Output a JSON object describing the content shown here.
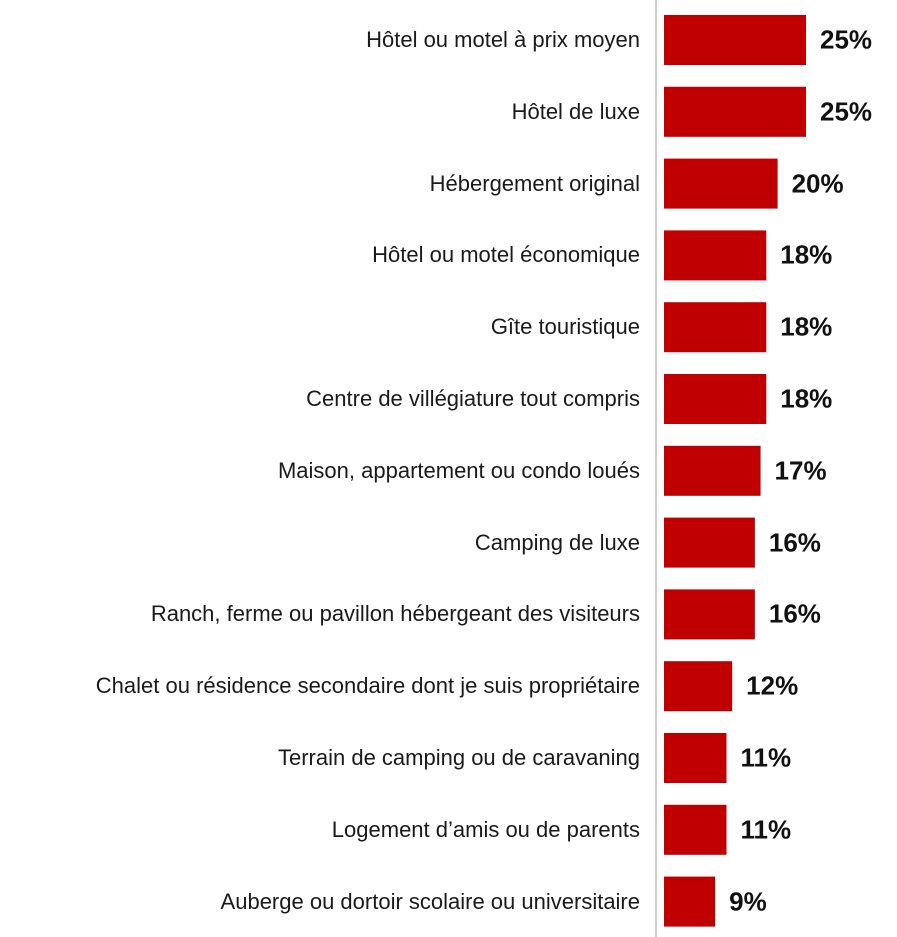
{
  "chart_data": {
    "type": "barh",
    "categories": [
      "Hôtel ou motel à prix moyen",
      "Hôtel de luxe",
      "Hébergement original",
      "Hôtel ou motel économique",
      "Gîte touristique",
      "Centre de villégiature tout compris",
      "Maison, appartement ou condo loués",
      "Camping de luxe",
      "Ranch, ferme ou pavillon hébergeant des visiteurs",
      "Chalet ou résidence secondaire dont je suis propriétaire",
      "Terrain de camping ou de caravaning",
      "Logement d’amis ou de parents",
      "Auberge ou dortoir scolaire ou universitaire"
    ],
    "values": [
      25,
      25,
      20,
      18,
      18,
      18,
      17,
      16,
      16,
      12,
      11,
      11,
      9
    ],
    "value_labels": [
      "25%",
      "25%",
      "20%",
      "18%",
      "18%",
      "18%",
      "17%",
      "16%",
      "16%",
      "12%",
      "11%",
      "11%",
      "9%"
    ],
    "color": "#c00000"
  }
}
